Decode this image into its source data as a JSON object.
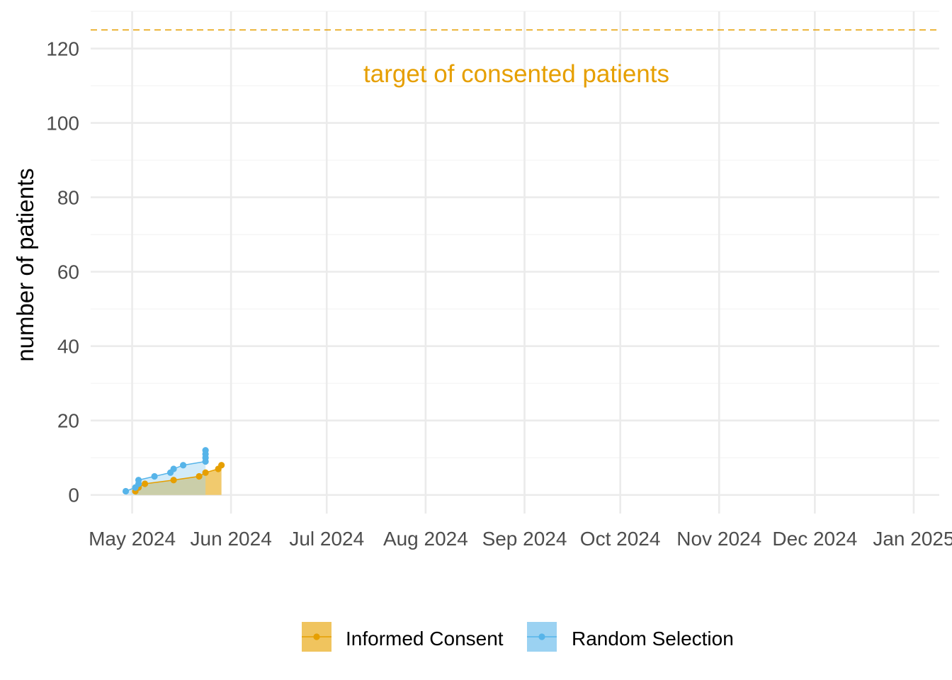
{
  "chart_data": {
    "type": "area",
    "ylabel": "number of patients",
    "xlabel": "",
    "ylim": [
      -5,
      130
    ],
    "xlim": [
      "2024-04-18",
      "2025-01-09"
    ],
    "x_ticks": [
      {
        "date": "2024-05-01",
        "label": "May 2024"
      },
      {
        "date": "2024-06-01",
        "label": "Jun 2024"
      },
      {
        "date": "2024-07-01",
        "label": "Jul 2024"
      },
      {
        "date": "2024-08-01",
        "label": "Aug 2024"
      },
      {
        "date": "2024-09-01",
        "label": "Sep 2024"
      },
      {
        "date": "2024-10-01",
        "label": "Oct 2024"
      },
      {
        "date": "2024-11-01",
        "label": "Nov 2024"
      },
      {
        "date": "2024-12-01",
        "label": "Dec 2024"
      },
      {
        "date": "2025-01-01",
        "label": "Jan 2025"
      }
    ],
    "y_ticks": [
      0,
      20,
      40,
      60,
      80,
      100,
      120
    ],
    "grid": true,
    "legend_position": "bottom",
    "target": {
      "value": 125,
      "label": "target of consented patients",
      "color": "#E69F00"
    },
    "series": [
      {
        "name": "Informed Consent",
        "line_color": "#E69F00",
        "fill_color": "#F0C45E",
        "points": [
          {
            "x": "2024-05-02",
            "y": 1
          },
          {
            "x": "2024-05-03",
            "y": 2
          },
          {
            "x": "2024-05-05",
            "y": 3
          },
          {
            "x": "2024-05-14",
            "y": 4
          },
          {
            "x": "2024-05-22",
            "y": 5
          },
          {
            "x": "2024-05-24",
            "y": 6
          },
          {
            "x": "2024-05-28",
            "y": 7
          },
          {
            "x": "2024-05-29",
            "y": 8
          }
        ]
      },
      {
        "name": "Random Selection",
        "line_color": "#56B4E9",
        "fill_color": "#9BD2F2",
        "points": [
          {
            "x": "2024-04-29",
            "y": 1
          },
          {
            "x": "2024-05-02",
            "y": 2
          },
          {
            "x": "2024-05-03",
            "y": 3
          },
          {
            "x": "2024-05-03",
            "y": 4
          },
          {
            "x": "2024-05-08",
            "y": 5
          },
          {
            "x": "2024-05-13",
            "y": 6
          },
          {
            "x": "2024-05-14",
            "y": 7
          },
          {
            "x": "2024-05-17",
            "y": 8
          },
          {
            "x": "2024-05-24",
            "y": 9
          },
          {
            "x": "2024-05-24",
            "y": 10
          },
          {
            "x": "2024-05-24",
            "y": 11
          },
          {
            "x": "2024-05-24",
            "y": 12
          }
        ]
      }
    ]
  }
}
